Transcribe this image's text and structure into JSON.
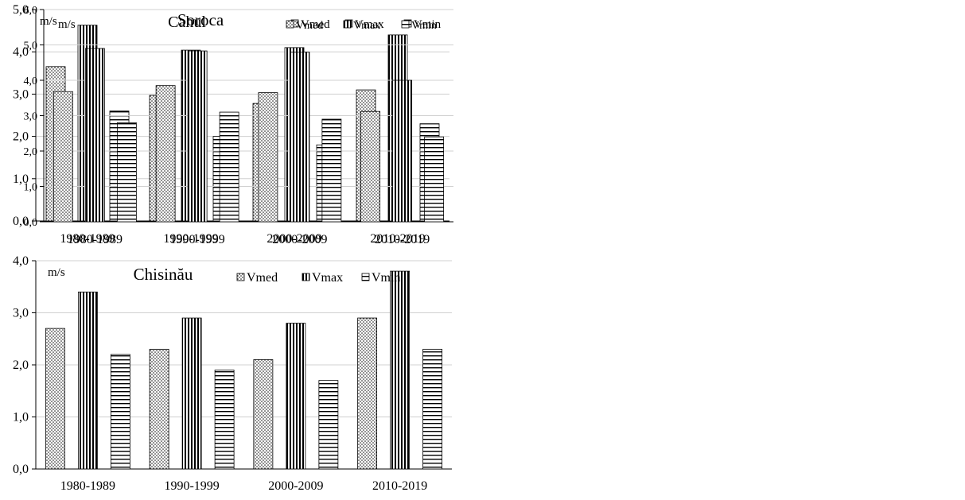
{
  "patterns": {
    "Vmed": "dots",
    "Vmax": "vertical-lines",
    "Vmin": "horizontal-lines"
  },
  "chart_data": [
    {
      "id": "soroca",
      "type": "bar",
      "title": "Soroca",
      "unit": "m/s",
      "categories": [
        "1980-1989",
        "1990-1999",
        "2000-2009",
        "2010-2019"
      ],
      "ylim": [
        0,
        5
      ],
      "ytick_step": 1,
      "ytick_labels": [
        "0,0",
        "1,0",
        "2,0",
        "3,0",
        "4,0",
        "5,0"
      ],
      "grid": true,
      "legend_position": "top-right",
      "series": [
        {
          "name": "Vmed",
          "values": [
            3.65,
            2.97,
            2.78,
            3.1
          ]
        },
        {
          "name": "Vmax",
          "values": [
            4.63,
            4.04,
            4.1,
            4.4
          ]
        },
        {
          "name": "Vmin",
          "values": [
            2.6,
            2.0,
            1.8,
            2.3
          ]
        }
      ]
    },
    {
      "id": "cahul",
      "type": "bar",
      "title": "Cahul",
      "unit": "m/s",
      "categories": [
        "1980-1989",
        "1990-1999",
        "2000-2009",
        "2010-2019"
      ],
      "ylim": [
        0,
        6
      ],
      "ytick_step": 1,
      "ytick_labels": [
        "0,0",
        "1,0",
        "2,0",
        "3,0",
        "4,0",
        "5,0",
        "6,0"
      ],
      "grid": true,
      "legend_position": "top-right",
      "series": [
        {
          "name": "Vmed",
          "values": [
            3.68,
            3.85,
            3.65,
            3.12
          ]
        },
        {
          "name": "Vmax",
          "values": [
            4.9,
            4.83,
            4.8,
            4.0
          ]
        },
        {
          "name": "Vmin",
          "values": [
            2.8,
            3.1,
            2.9,
            2.4
          ]
        }
      ]
    },
    {
      "id": "chisinau",
      "type": "bar",
      "title": "Chisinău",
      "unit": "m/s",
      "categories": [
        "1980-1989",
        "1990-1999",
        "2000-2009",
        "2010-2019"
      ],
      "ylim": [
        0,
        4
      ],
      "ytick_step": 1,
      "ytick_labels": [
        "0,0",
        "1,0",
        "2,0",
        "3,0",
        "4,0"
      ],
      "grid": true,
      "legend_position": "top-right",
      "series": [
        {
          "name": "Vmed",
          "values": [
            2.7,
            2.3,
            2.1,
            2.9
          ]
        },
        {
          "name": "Vmax",
          "values": [
            3.4,
            2.9,
            2.8,
            3.8
          ]
        },
        {
          "name": "Vmin",
          "values": [
            2.2,
            1.9,
            1.7,
            2.3
          ]
        }
      ]
    }
  ]
}
